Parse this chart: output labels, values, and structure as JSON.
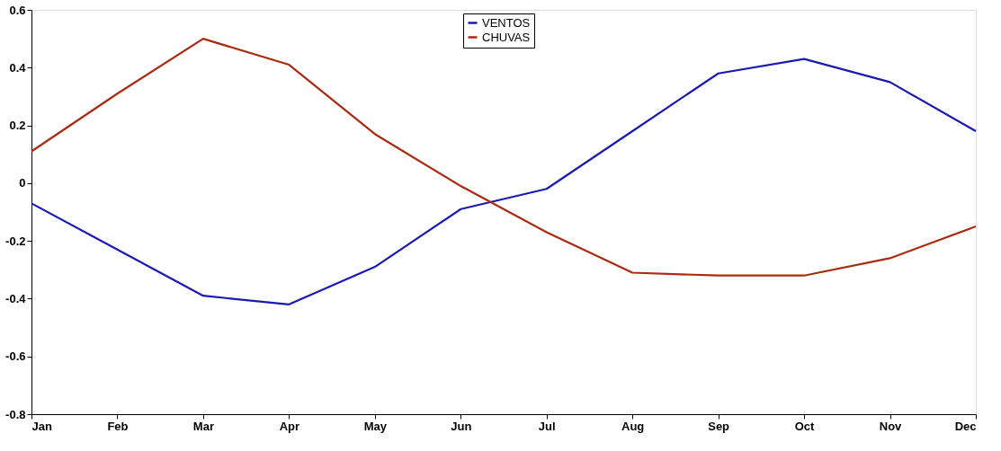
{
  "chart_data": {
    "type": "line",
    "categories": [
      "Jan",
      "Feb",
      "Mar",
      "Apr",
      "May",
      "Jun",
      "Jul",
      "Aug",
      "Sep",
      "Oct",
      "Nov",
      "Dec"
    ],
    "series": [
      {
        "name": "VENTOS",
        "color": "#1a1ab0",
        "values": [
          -0.07,
          -0.23,
          -0.39,
          -0.42,
          -0.29,
          -0.09,
          -0.02,
          0.18,
          0.38,
          0.43,
          0.35,
          0.18
        ]
      },
      {
        "name": "CHUVAS",
        "color": "#a82a10",
        "values": [
          0.11,
          0.31,
          0.5,
          0.41,
          0.17,
          -0.01,
          -0.17,
          -0.31,
          -0.32,
          -0.32,
          -0.26,
          -0.15
        ]
      }
    ],
    "ylim": [
      -0.8,
      0.6
    ],
    "yticks": [
      -0.8,
      -0.6,
      -0.4,
      -0.2,
      0,
      0.2,
      0.4,
      0.6
    ],
    "grid": false,
    "legend": "top",
    "marker": "none",
    "line_style": "solid"
  }
}
